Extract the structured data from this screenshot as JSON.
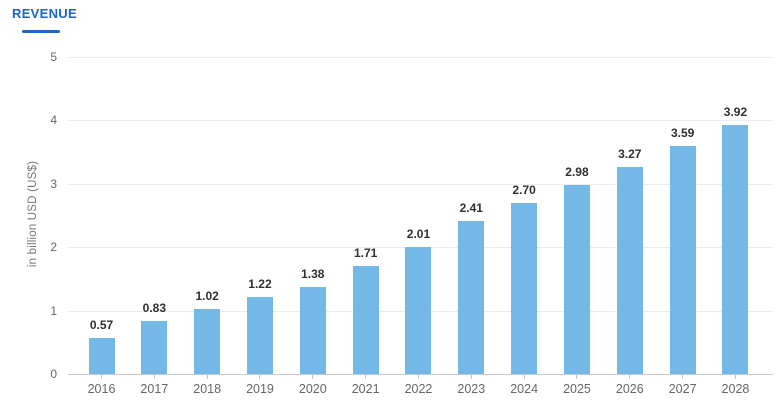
{
  "tab": {
    "label": "REVENUE"
  },
  "colors": {
    "accent_blue": "#1b67c6",
    "bar_fill": "#74b8e8",
    "gridline": "#ececec",
    "axis_line": "#c8c8c8",
    "tick_label": "#666666",
    "value_label": "#303030"
  },
  "chart_data": {
    "type": "bar",
    "title": "REVENUE",
    "categories": [
      "2016",
      "2017",
      "2018",
      "2019",
      "2020",
      "2021",
      "2022",
      "2023",
      "2024",
      "2025",
      "2026",
      "2027",
      "2028"
    ],
    "values": [
      0.57,
      0.83,
      1.02,
      1.22,
      1.38,
      1.71,
      2.01,
      2.41,
      2.7,
      2.98,
      3.27,
      3.59,
      3.92
    ],
    "value_label_format": "two decimals shown above each bar",
    "xlabel": "",
    "ylabel": "in billion USD (US$)",
    "ylim": [
      0,
      5
    ],
    "yticks": [
      0,
      1,
      2,
      3,
      4,
      5
    ],
    "grid": "horizontal gridlines on",
    "legend": "none"
  }
}
